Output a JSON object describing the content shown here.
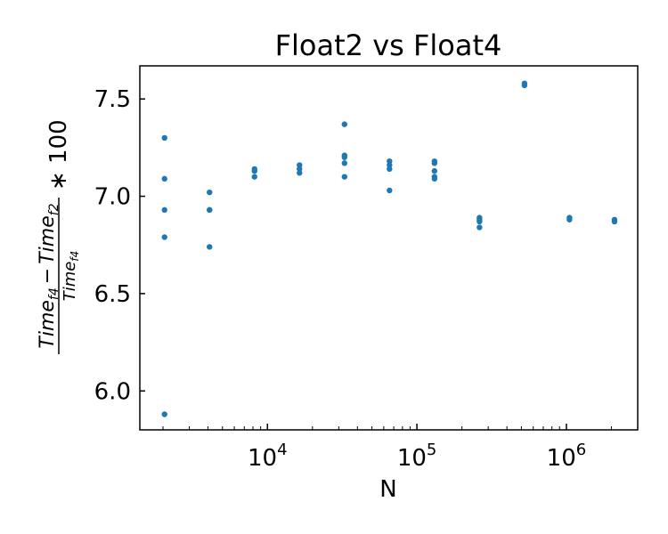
{
  "chart_data": {
    "type": "scatter",
    "title": "Float2 vs Float4",
    "xlabel": "N",
    "ylabel": {
      "numerator": "Time",
      "sub_a": "f4",
      "minus": "−",
      "sub_b": "f2",
      "denominator": "Time",
      "sub_d": "f4",
      "suffix": "∗ 100"
    },
    "x_scale": "log",
    "xlim": [
      1400,
      3000000
    ],
    "ylim": [
      5.8,
      7.67
    ],
    "x_ticks": [
      {
        "value": 10000,
        "base": "10",
        "exp": "4"
      },
      {
        "value": 100000,
        "base": "10",
        "exp": "5"
      },
      {
        "value": 1000000,
        "base": "10",
        "exp": "6"
      }
    ],
    "y_ticks": [
      {
        "value": 6.0,
        "label": "6.0"
      },
      {
        "value": 6.5,
        "label": "6.5"
      },
      {
        "value": 7.0,
        "label": "7.0"
      },
      {
        "value": 7.5,
        "label": "7.5"
      }
    ],
    "grid": false,
    "marker_color": "#1f77b4",
    "points": [
      [
        2048,
        7.3
      ],
      [
        2048,
        7.09
      ],
      [
        2048,
        6.93
      ],
      [
        2048,
        6.79
      ],
      [
        2048,
        5.88
      ],
      [
        4096,
        7.02
      ],
      [
        4096,
        6.93
      ],
      [
        4096,
        6.93
      ],
      [
        4096,
        6.74
      ],
      [
        8192,
        7.14
      ],
      [
        8192,
        7.13
      ],
      [
        8192,
        7.1
      ],
      [
        16384,
        7.16
      ],
      [
        16384,
        7.14
      ],
      [
        16384,
        7.12
      ],
      [
        32768,
        7.37
      ],
      [
        32768,
        7.21
      ],
      [
        32768,
        7.2
      ],
      [
        32768,
        7.17
      ],
      [
        32768,
        7.1
      ],
      [
        65536,
        7.18
      ],
      [
        65536,
        7.16
      ],
      [
        65536,
        7.14
      ],
      [
        65536,
        7.03
      ],
      [
        131072,
        7.18
      ],
      [
        131072,
        7.17
      ],
      [
        131072,
        7.13
      ],
      [
        131072,
        7.1
      ],
      [
        131072,
        7.09
      ],
      [
        262144,
        6.89
      ],
      [
        262144,
        6.88
      ],
      [
        262144,
        6.87
      ],
      [
        262144,
        6.84
      ],
      [
        524288,
        7.58
      ],
      [
        524288,
        7.57
      ],
      [
        1048576,
        6.89
      ],
      [
        1048576,
        6.88
      ],
      [
        2097152,
        6.88
      ],
      [
        2097152,
        6.87
      ]
    ]
  }
}
